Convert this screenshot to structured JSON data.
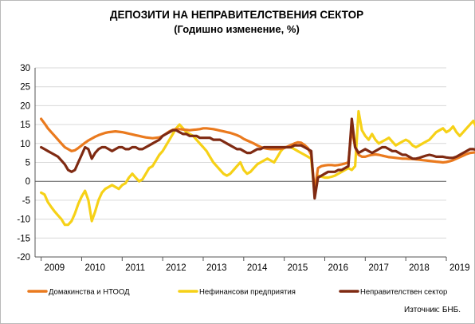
{
  "chart_data": {
    "type": "line",
    "title": "ДЕПОЗИТИ НА НЕПРАВИТЕЛСТВЕНИЯ СЕКТОР",
    "subtitle": "(Годишно изменение, %)",
    "xlabel": "",
    "ylabel": "",
    "ylim": [
      -20,
      30
    ],
    "y_ticks": [
      "30",
      "25",
      "20",
      "15",
      "10",
      "5",
      "0",
      "-5",
      "-10",
      "-15",
      "-20"
    ],
    "x_tick_labels": [
      "2009",
      "2010",
      "2011",
      "2012",
      "2013",
      "2014",
      "2015",
      "2016",
      "2017",
      "2018",
      "2019"
    ],
    "x_start": "2009-01",
    "x_end": "2018-12",
    "x_domain_years": [
      2008.85,
      2019.0
    ],
    "grid": true,
    "legend_position": "bottom",
    "source": "Източник: БНБ.",
    "colors": {
      "households": "#ea7a1e",
      "corporations": "#f6d117",
      "non_government": "#7f2a12",
      "axis": "#555555",
      "grid": "#d9d9d9",
      "text": "#000000"
    },
    "series": [
      {
        "name": "Домакинства и НТООД",
        "color": "#ea7a1e",
        "values": [
          16.5,
          15.3,
          14,
          13,
          12,
          11,
          10,
          9,
          8.5,
          8,
          8.2,
          8.8,
          9.5,
          10.2,
          10.8,
          11.3,
          11.8,
          12.2,
          12.5,
          12.8,
          13,
          13.1,
          13.2,
          13.1,
          13,
          12.8,
          12.6,
          12.4,
          12.2,
          12,
          11.8,
          11.6,
          11.5,
          11.4,
          11.5,
          11.6,
          12,
          12.6,
          13.2,
          13.6,
          13.8,
          13.8,
          13.7,
          13.6,
          13.5,
          13.6,
          13.7,
          13.8,
          14,
          14,
          13.9,
          13.8,
          13.6,
          13.4,
          13.2,
          13,
          12.8,
          12.5,
          12.2,
          11.8,
          11.2,
          10.8,
          10.4,
          10,
          9.5,
          9.1,
          8.8,
          8.6,
          8.5,
          8.5,
          8.5,
          8.6,
          8.8,
          9.2,
          9.6,
          10,
          10.3,
          10.2,
          9.6,
          8.8,
          7,
          -2.5,
          3.5,
          4,
          4.2,
          4.3,
          4.3,
          4.2,
          4.3,
          4.5,
          4.7,
          5,
          14,
          9,
          7,
          6.5,
          6.5,
          6.8,
          7,
          7.1,
          7,
          6.8,
          6.6,
          6.4,
          6.3,
          6.2,
          6.1,
          6,
          6,
          5.9,
          5.9,
          5.8,
          5.7,
          5.6,
          5.5,
          5.4,
          5.3,
          5.2,
          5.1,
          5,
          5.1,
          5.3,
          5.6,
          6,
          6.4,
          6.8,
          7.2,
          7.5,
          7.6,
          7.7,
          7.8,
          7.8,
          7.9,
          8,
          8.2,
          8.4,
          8.6,
          8.8
        ]
      },
      {
        "name": "Нефинансови предприятия",
        "color": "#f6d117",
        "values": [
          -3,
          -3.5,
          -5.5,
          -6.8,
          -8,
          -9,
          -10,
          -11.5,
          -11.5,
          -10.5,
          -8.5,
          -6,
          -4,
          -2.5,
          -5,
          -10.5,
          -8,
          -5,
          -3,
          -2,
          -1.5,
          -1,
          -1.5,
          -2,
          -1,
          -0.5,
          1,
          2,
          1,
          0,
          0.5,
          2,
          3.5,
          4,
          5.5,
          7,
          8,
          9.5,
          11,
          12.5,
          14,
          15,
          14,
          13,
          12.5,
          12,
          11,
          10,
          9,
          8,
          6.5,
          5,
          4,
          3,
          2,
          1.5,
          2,
          3,
          4,
          5,
          3,
          2,
          2.5,
          3.5,
          4.5,
          5,
          5.5,
          6,
          5.5,
          5,
          6.5,
          8,
          9,
          9,
          9,
          8.5,
          8,
          7.5,
          7,
          6.5,
          6,
          -3.5,
          1.5,
          1.2,
          1,
          1,
          1.2,
          1.5,
          2,
          2.5,
          3,
          3.5,
          3,
          4,
          18.5,
          13.5,
          12,
          11,
          12.5,
          11,
          10,
          10.5,
          11,
          11.5,
          10.5,
          9.5,
          10,
          10.5,
          11,
          10.5,
          9.5,
          9,
          9.5,
          10,
          10.5,
          11,
          12,
          13,
          13.5,
          14,
          13,
          13.5,
          14.5,
          13,
          12,
          13,
          14,
          15,
          16,
          14,
          13,
          12,
          11,
          8,
          6,
          5,
          6,
          7,
          8
        ]
      },
      {
        "name": "Неправителствен сектор",
        "color": "#7f2a12",
        "values": [
          9,
          8.5,
          8,
          7.5,
          7,
          6.5,
          5.5,
          4.5,
          3,
          2.5,
          3,
          5,
          7,
          9,
          8.5,
          6,
          7.5,
          8.5,
          9,
          9,
          8.5,
          8,
          8.5,
          9,
          9,
          8.5,
          8.5,
          9,
          9,
          8.5,
          8.5,
          9,
          9.5,
          10,
          10.5,
          11,
          12,
          12.5,
          13,
          13.5,
          13.5,
          13,
          12.5,
          12.5,
          12,
          12,
          12,
          11.5,
          11.5,
          11.5,
          11.5,
          11,
          11,
          11,
          10.5,
          10,
          9.5,
          9,
          8.5,
          8.5,
          8,
          7.5,
          7.5,
          8,
          8.5,
          8.5,
          9,
          9,
          9,
          9,
          9,
          9,
          9,
          9,
          9,
          9.5,
          9.5,
          9.5,
          9,
          8.5,
          8,
          -4.5,
          1,
          1.5,
          2,
          2.5,
          2.5,
          2.5,
          3,
          3,
          3.5,
          4,
          16.5,
          9,
          7.5,
          8,
          8.5,
          8,
          7.5,
          8,
          8.5,
          9,
          9,
          8.5,
          8,
          8,
          7.5,
          7,
          7,
          6.5,
          6,
          6,
          6.2,
          6.5,
          6.8,
          7,
          6.8,
          6.5,
          6.5,
          6.5,
          6.3,
          6.2,
          6.2,
          6.5,
          7,
          7.5,
          8,
          8.5,
          8.5,
          8.3,
          8,
          8,
          8,
          8.5,
          8.5,
          9,
          9,
          9,
          9,
          9
        ]
      }
    ]
  }
}
